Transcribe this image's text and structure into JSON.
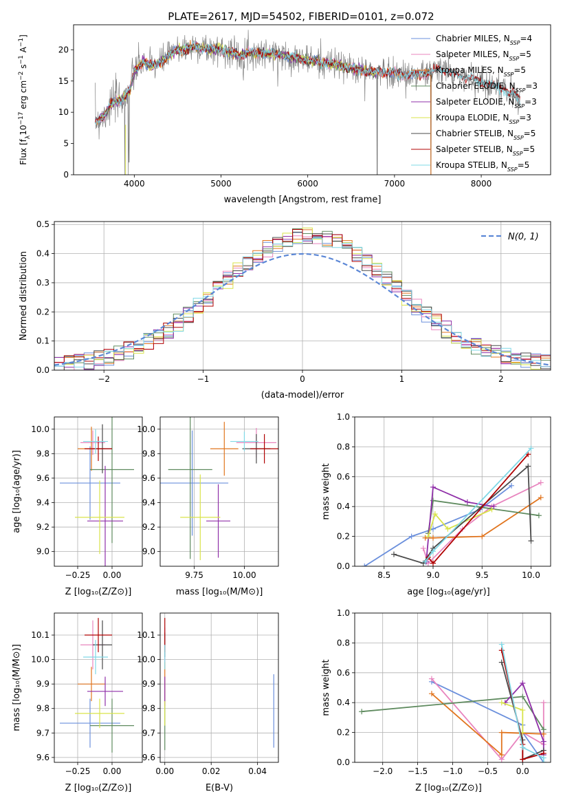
{
  "colors": {
    "chabrier_miles": "#6a8fdc",
    "salpeter_miles": "#e884be",
    "kroupa_miles": "#e1741d",
    "chabrier_elodie": "#5e8a5e",
    "salpeter_elodie": "#8f2fa8",
    "kroupa_elodie": "#d8e34a",
    "chabrier_stelib": "#4a4a4a",
    "salpeter_stelib": "#b00000",
    "kroupa_stelib": "#7fd8e6",
    "grid": "#b0b0b0",
    "normal_curve": "#5b87d6"
  },
  "chart_data": [
    {
      "id": "spectrum",
      "type": "line",
      "title": "PLATE=2617, MJD=54502, FIBERID=0101, z=0.072",
      "xlabel": "wavelength [Angstrom, rest frame]",
      "ylabel": "Flux [f_λ10^{-17} erg cm^{-2} s^{-1} A^{-1}]",
      "xlim": [
        3300,
        8800
      ],
      "ylim": [
        0,
        24
      ],
      "xticks": [
        4000,
        5000,
        6000,
        7000,
        8000
      ],
      "yticks": [
        0,
        5,
        10,
        15,
        20
      ],
      "grid": false,
      "legend_position": "top-right",
      "legend": [
        {
          "label": "Chabrier MILES, N",
          "sub": "SSP",
          "tail": "=4",
          "color": "chabrier_miles"
        },
        {
          "label": "Salpeter MILES, N",
          "sub": "SSP",
          "tail": "=5",
          "color": "salpeter_miles"
        },
        {
          "label": "Kroupa MILES, N",
          "sub": "SSP",
          "tail": "=5",
          "color": "kroupa_miles"
        },
        {
          "label": "Chabrier ELODIE, N",
          "sub": "SSP",
          "tail": "=3",
          "color": "chabrier_elodie"
        },
        {
          "label": "Salpeter ELODIE, N",
          "sub": "SSP",
          "tail": "=3",
          "color": "salpeter_elodie"
        },
        {
          "label": "Kroupa ELODIE, N",
          "sub": "SSP",
          "tail": "=3",
          "color": "kroupa_elodie"
        },
        {
          "label": "Chabrier STELIB, N",
          "sub": "SSP",
          "tail": "=5",
          "color": "chabrier_stelib"
        },
        {
          "label": "Salpeter STELIB, N",
          "sub": "SSP",
          "tail": "=5",
          "color": "salpeter_stelib"
        },
        {
          "label": "Kroupa STELIB, N",
          "sub": "SSP",
          "tail": "=5",
          "color": "kroupa_stelib"
        }
      ],
      "continuum": [
        [
          3550,
          8.5
        ],
        [
          3650,
          9.5
        ],
        [
          3750,
          11.5
        ],
        [
          3850,
          12.0
        ],
        [
          3950,
          13.5
        ],
        [
          4000,
          16.5
        ],
        [
          4100,
          18.0
        ],
        [
          4200,
          17.5
        ],
        [
          4300,
          18.0
        ],
        [
          4400,
          19.0
        ],
        [
          4500,
          20.0
        ],
        [
          4600,
          20.2
        ],
        [
          4700,
          20.5
        ],
        [
          4800,
          20.3
        ],
        [
          4900,
          20.0
        ],
        [
          5000,
          20.0
        ],
        [
          5100,
          19.8
        ],
        [
          5200,
          19.0
        ],
        [
          5300,
          19.5
        ],
        [
          5400,
          19.5
        ],
        [
          5500,
          19.5
        ],
        [
          5600,
          19.3
        ],
        [
          5700,
          19.2
        ],
        [
          5800,
          18.8
        ],
        [
          5900,
          18.7
        ],
        [
          6000,
          18.3
        ],
        [
          6100,
          18.2
        ],
        [
          6200,
          17.9
        ],
        [
          6300,
          17.7
        ],
        [
          6400,
          17.4
        ],
        [
          6500,
          17.0
        ],
        [
          6600,
          16.8
        ],
        [
          6700,
          16.5
        ],
        [
          6800,
          16.3
        ],
        [
          6900,
          16.5
        ],
        [
          7000,
          16.2
        ],
        [
          7100,
          16.0
        ],
        [
          7200,
          16.0
        ],
        [
          7300,
          16.1
        ],
        [
          7400,
          16.3
        ],
        [
          7500,
          16.8
        ],
        [
          7600,
          16.7
        ],
        [
          7700,
          16.0
        ],
        [
          7800,
          15.6
        ],
        [
          7900,
          15.4
        ],
        [
          8000,
          14.8
        ],
        [
          8100,
          14.4
        ],
        [
          8200,
          14.0
        ],
        [
          8300,
          13.4
        ],
        [
          8400,
          12.6
        ],
        [
          8450,
          12.0
        ]
      ],
      "dips": [
        [
          3890,
          0
        ],
        [
          3930,
          0
        ],
        [
          3940,
          2
        ],
        [
          6800,
          0
        ],
        [
          7420,
          0
        ]
      ]
    },
    {
      "id": "residuals",
      "type": "histogram",
      "xlabel": "(data-model)/error",
      "ylabel": "Normed distribution",
      "xlim": [
        -2.5,
        2.5
      ],
      "ylim": [
        0,
        0.51
      ],
      "xticks": [
        -2,
        -1,
        0,
        1,
        2
      ],
      "yticks": [
        0.0,
        0.1,
        0.2,
        0.3,
        0.4,
        0.5
      ],
      "grid": true,
      "legend_position": "top-right",
      "normal_label": "N(0, 1)",
      "bin_width": 0.1
    },
    {
      "id": "age_vs_Z",
      "type": "scatter",
      "xlabel": "Z [log₁₀(Z/Z⊙)]",
      "ylabel": "age  [log₁₀(age/yr)]",
      "xlim": [
        -0.42,
        0.22
      ],
      "ylim": [
        8.88,
        10.1
      ],
      "xticks": [
        -0.25,
        0.0
      ],
      "yticks": [
        9.0,
        9.2,
        9.4,
        9.6,
        9.8,
        10.0
      ],
      "grid": true,
      "points": [
        {
          "x": -0.16,
          "xerr": 0.22,
          "y": 9.56,
          "yerr": 0.3,
          "color": "chabrier_miles"
        },
        {
          "x": -0.14,
          "xerr": 0.09,
          "y": 9.89,
          "yerr": 0.1,
          "color": "salpeter_miles"
        },
        {
          "x": -0.15,
          "xerr": 0.1,
          "y": 9.84,
          "yerr": 0.18,
          "color": "kroupa_miles"
        },
        {
          "x": 0.0,
          "xerr": 0.16,
          "y": 9.67,
          "yerr": 0.6,
          "color": "chabrier_elodie"
        },
        {
          "x": -0.05,
          "xerr": 0.13,
          "y": 9.25,
          "yerr": 0.45,
          "color": "salpeter_elodie"
        },
        {
          "x": -0.09,
          "xerr": 0.18,
          "y": 9.28,
          "yerr": 0.3,
          "color": "kroupa_elodie"
        },
        {
          "x": -0.07,
          "xerr": 0.07,
          "y": 9.84,
          "yerr": 0.2,
          "color": "chabrier_stelib"
        },
        {
          "x": -0.1,
          "xerr": 0.1,
          "y": 9.84,
          "yerr": 0.1,
          "color": "salpeter_stelib"
        },
        {
          "x": -0.12,
          "xerr": 0.09,
          "y": 9.9,
          "yerr": 0.1,
          "color": "kroupa_stelib"
        }
      ]
    },
    {
      "id": "age_vs_mass",
      "type": "scatter",
      "xlabel": "mass [log₁₀(M/M⊙)]",
      "ylabel": "",
      "xlim": [
        9.58,
        10.17
      ],
      "ylim": [
        8.88,
        10.1
      ],
      "xticks": [
        9.75,
        10.0
      ],
      "yticks": [
        9.0,
        9.2,
        9.4,
        9.6,
        9.8,
        10.0
      ],
      "grid": true,
      "points": [
        {
          "x": 9.74,
          "xerr": 0.18,
          "y": 9.56,
          "yerr": 0.43,
          "color": "chabrier_miles"
        },
        {
          "x": 10.06,
          "xerr": 0.1,
          "y": 9.89,
          "yerr": 0.12,
          "color": "salpeter_miles"
        },
        {
          "x": 9.9,
          "xerr": 0.07,
          "y": 9.84,
          "yerr": 0.22,
          "color": "kroupa_miles"
        },
        {
          "x": 9.73,
          "xerr": 0.11,
          "y": 9.67,
          "yerr": 0.73,
          "color": "chabrier_elodie"
        },
        {
          "x": 9.87,
          "xerr": 0.06,
          "y": 9.25,
          "yerr": 0.3,
          "color": "salpeter_elodie"
        },
        {
          "x": 9.78,
          "xerr": 0.1,
          "y": 9.28,
          "yerr": 0.35,
          "color": "kroupa_elodie"
        },
        {
          "x": 10.06,
          "xerr": 0.07,
          "y": 9.84,
          "yerr": 0.12,
          "color": "chabrier_stelib"
        },
        {
          "x": 10.1,
          "xerr": 0.07,
          "y": 9.84,
          "yerr": 0.12,
          "color": "salpeter_stelib"
        },
        {
          "x": 10.0,
          "xerr": 0.07,
          "y": 9.9,
          "yerr": 0.08,
          "color": "kroupa_stelib"
        }
      ]
    },
    {
      "id": "weight_vs_age",
      "type": "line",
      "xlabel": "age  [log₁₀(age/yr)]",
      "ylabel": "mass weight",
      "xlim": [
        8.2,
        10.2
      ],
      "ylim": [
        0,
        1.0
      ],
      "xticks": [
        8.5,
        9.0,
        9.5,
        10.0
      ],
      "yticks": [
        0.0,
        0.2,
        0.4,
        0.6,
        0.8,
        1.0
      ],
      "grid": true,
      "series": [
        {
          "color": "chabrier_miles",
          "x": [
            8.3,
            8.78,
            9.0,
            9.48,
            9.8
          ],
          "y": [
            0.0,
            0.2,
            0.25,
            0.38,
            0.54
          ]
        },
        {
          "color": "salpeter_miles",
          "x": [
            8.9,
            8.95,
            9.3,
            9.6,
            10.1
          ],
          "y": [
            0.12,
            0.02,
            0.25,
            0.4,
            0.56
          ]
        },
        {
          "color": "kroupa_miles",
          "x": [
            8.92,
            9.0,
            9.5,
            10.1
          ],
          "y": [
            0.19,
            0.19,
            0.2,
            0.46
          ]
        },
        {
          "color": "chabrier_elodie",
          "x": [
            8.95,
            9.0,
            10.08
          ],
          "y": [
            0.22,
            0.44,
            0.34
          ]
        },
        {
          "color": "salpeter_elodie",
          "x": [
            8.93,
            9.0,
            9.35,
            9.62
          ],
          "y": [
            0.03,
            0.53,
            0.43,
            0.4
          ]
        },
        {
          "color": "kroupa_elodie",
          "x": [
            8.95,
            9.02,
            9.15,
            9.6
          ],
          "y": [
            0.2,
            0.35,
            0.25,
            0.38
          ]
        },
        {
          "color": "chabrier_stelib",
          "x": [
            8.6,
            8.9,
            9.0,
            9.97,
            10.0
          ],
          "y": [
            0.08,
            0.02,
            0.12,
            0.67,
            0.17
          ]
        },
        {
          "color": "salpeter_stelib",
          "x": [
            8.95,
            9.0,
            9.97
          ],
          "y": [
            0.06,
            0.02,
            0.75
          ]
        },
        {
          "color": "kroupa_stelib",
          "x": [
            8.92,
            9.0,
            10.0
          ],
          "y": [
            0.03,
            0.1,
            0.79
          ]
        }
      ]
    },
    {
      "id": "mass_vs_Z",
      "type": "scatter",
      "xlabel": "Z [log₁₀(Z/Z⊙)]",
      "ylabel": "mass [log₁₀(M/M⊙)]",
      "xlim": [
        -0.42,
        0.22
      ],
      "ylim": [
        9.58,
        10.19
      ],
      "xticks": [
        -0.25,
        0.0
      ],
      "yticks": [
        9.6,
        9.7,
        9.8,
        9.9,
        10.0,
        10.1
      ],
      "grid": true,
      "points": [
        {
          "x": -0.16,
          "xerr": 0.22,
          "y": 9.74,
          "yerr": 0.1,
          "color": "chabrier_miles"
        },
        {
          "x": -0.14,
          "xerr": 0.09,
          "y": 10.06,
          "yerr": 0.1,
          "color": "salpeter_miles"
        },
        {
          "x": -0.15,
          "xerr": 0.1,
          "y": 9.9,
          "yerr": 0.07,
          "color": "kroupa_miles"
        },
        {
          "x": 0.0,
          "xerr": 0.16,
          "y": 9.73,
          "yerr": 0.11,
          "color": "chabrier_elodie"
        },
        {
          "x": -0.05,
          "xerr": 0.13,
          "y": 9.87,
          "yerr": 0.06,
          "color": "salpeter_elodie"
        },
        {
          "x": -0.09,
          "xerr": 0.18,
          "y": 9.78,
          "yerr": 0.06,
          "color": "kroupa_elodie"
        },
        {
          "x": -0.07,
          "xerr": 0.07,
          "y": 10.06,
          "yerr": 0.1,
          "color": "chabrier_stelib"
        },
        {
          "x": -0.1,
          "xerr": 0.1,
          "y": 10.1,
          "yerr": 0.07,
          "color": "salpeter_stelib"
        },
        {
          "x": -0.12,
          "xerr": 0.09,
          "y": 10.01,
          "yerr": 0.07,
          "color": "kroupa_stelib"
        }
      ]
    },
    {
      "id": "mass_vs_ebv",
      "type": "scatter",
      "xlabel": "E(B-V)",
      "ylabel": "",
      "xlim": [
        -0.002,
        0.049
      ],
      "ylim": [
        9.58,
        10.19
      ],
      "xticks": [
        0.0,
        0.02,
        0.04
      ],
      "yticks": [
        9.6,
        9.7,
        9.8,
        9.9,
        10.0,
        10.1
      ],
      "grid": true,
      "points": [
        {
          "x": 0.047,
          "xerr": 0,
          "y": 9.79,
          "yerr": 0.15,
          "color": "chabrier_miles"
        },
        {
          "x": 0.0,
          "xerr": 0,
          "y": 10.06,
          "yerr": 0.07,
          "color": "salpeter_miles"
        },
        {
          "x": 0.0,
          "xerr": 0,
          "y": 9.9,
          "yerr": 0.09,
          "color": "kroupa_miles"
        },
        {
          "x": 0.0,
          "xerr": 0,
          "y": 9.73,
          "yerr": 0.1,
          "color": "chabrier_elodie"
        },
        {
          "x": 0.0,
          "xerr": 0,
          "y": 9.87,
          "yerr": 0.06,
          "color": "salpeter_elodie"
        },
        {
          "x": 0.0,
          "xerr": 0,
          "y": 9.78,
          "yerr": 0.05,
          "color": "kroupa_elodie"
        },
        {
          "x": 0.0,
          "xerr": 0,
          "y": 10.06,
          "yerr": 0.05,
          "color": "chabrier_stelib"
        },
        {
          "x": 0.0,
          "xerr": 0,
          "y": 10.1,
          "yerr": 0.07,
          "color": "salpeter_stelib"
        },
        {
          "x": 0.0,
          "xerr": 0,
          "y": 10.01,
          "yerr": 0.05,
          "color": "kroupa_stelib"
        }
      ]
    },
    {
      "id": "weight_vs_Z",
      "type": "line",
      "xlabel": "Z [log₁₀(Z/Z⊙)]",
      "ylabel": "mass weight",
      "xlim": [
        -2.4,
        0.4
      ],
      "ylim": [
        0,
        1.0
      ],
      "xticks": [
        -2.0,
        -1.5,
        -1.0,
        -0.5,
        0.0
      ],
      "yticks": [
        0.0,
        0.2,
        0.4,
        0.6,
        0.8,
        1.0
      ],
      "grid": true,
      "series": [
        {
          "color": "chabrier_miles",
          "x": [
            -1.3,
            0.0,
            0.0,
            0.3
          ],
          "y": [
            0.54,
            0.25,
            0.2,
            0.0
          ]
        },
        {
          "color": "salpeter_miles",
          "x": [
            -1.3,
            -0.3,
            0.0,
            0.3,
            0.3
          ],
          "y": [
            0.56,
            0.02,
            0.2,
            0.12,
            0.4
          ]
        },
        {
          "color": "kroupa_miles",
          "x": [
            -1.3,
            -0.3,
            -0.3,
            0.3
          ],
          "y": [
            0.46,
            0.05,
            0.2,
            0.19
          ]
        },
        {
          "color": "chabrier_elodie",
          "x": [
            -2.3,
            0.0,
            0.3
          ],
          "y": [
            0.34,
            0.44,
            0.22
          ]
        },
        {
          "color": "salpeter_elodie",
          "x": [
            -0.25,
            0.0,
            0.3,
            0.3
          ],
          "y": [
            0.4,
            0.53,
            0.14,
            0.05
          ]
        },
        {
          "color": "kroupa_elodie",
          "x": [
            -0.3,
            0.0,
            0.0
          ],
          "y": [
            0.4,
            0.35,
            0.2
          ]
        },
        {
          "color": "chabrier_stelib",
          "x": [
            -0.3,
            0.0,
            0.0,
            0.3
          ],
          "y": [
            0.67,
            0.15,
            0.02,
            0.08
          ]
        },
        {
          "color": "salpeter_stelib",
          "x": [
            -0.3,
            0.0,
            0.0,
            0.3
          ],
          "y": [
            0.75,
            0.12,
            0.02,
            0.06
          ]
        },
        {
          "color": "kroupa_stelib",
          "x": [
            -0.3,
            0.0,
            0.3,
            0.3
          ],
          "y": [
            0.79,
            0.1,
            0.03,
            0.0
          ]
        }
      ]
    }
  ]
}
